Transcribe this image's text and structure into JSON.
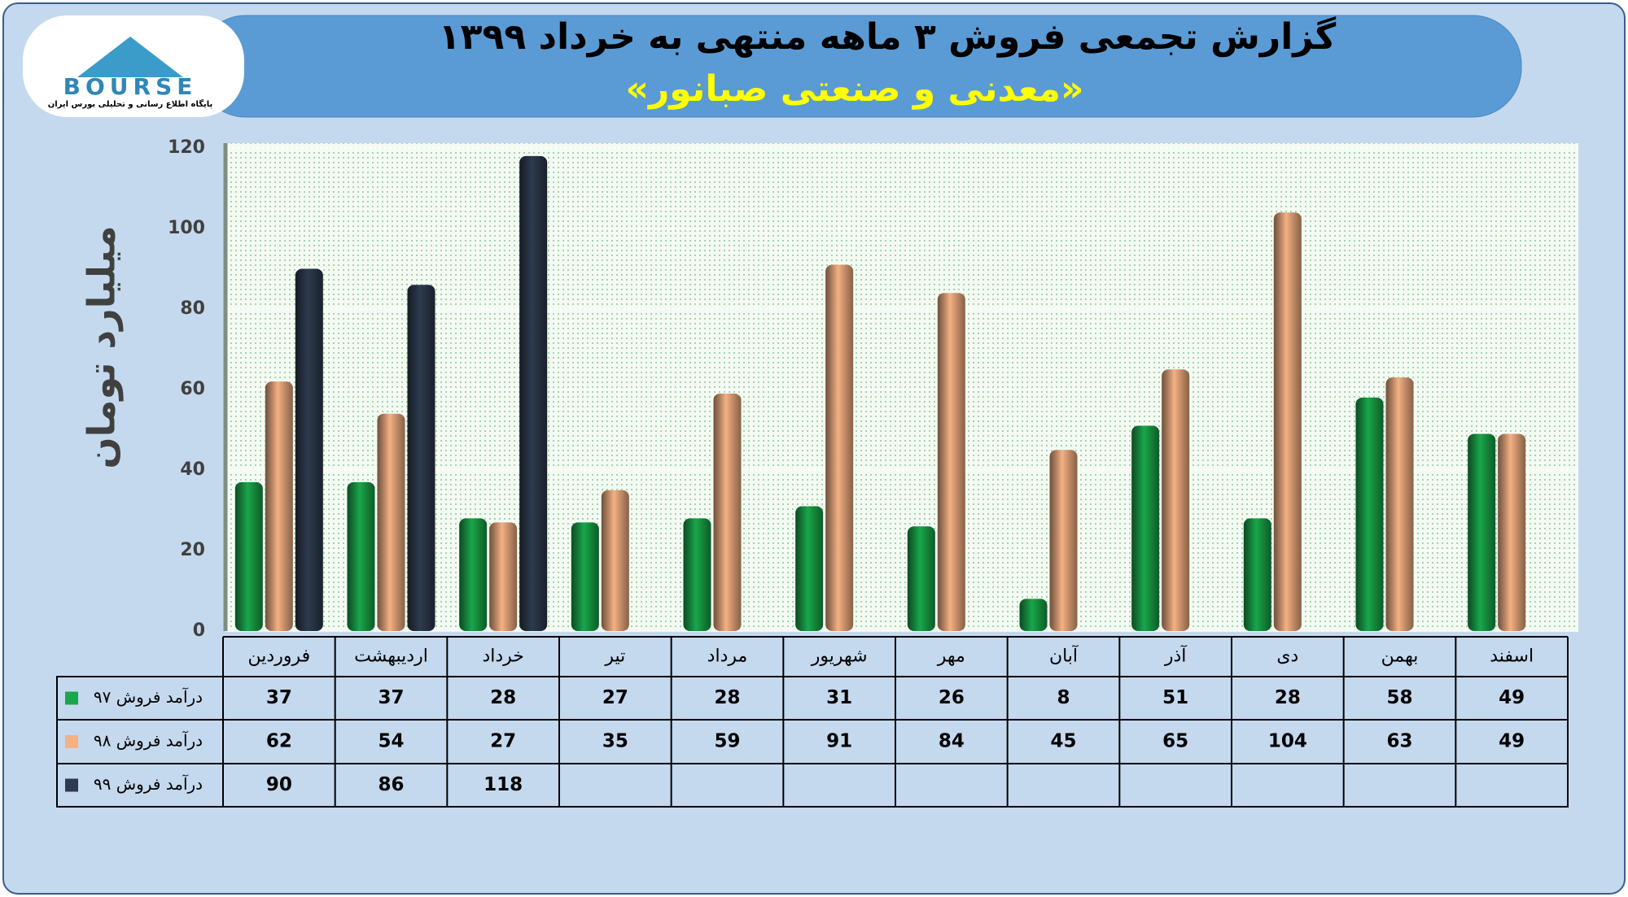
{
  "logo": {
    "name": "BOURSE",
    "caption": "پایگاه اطلاع رسانی و تحلیلی بورس ایران"
  },
  "chart_data": {
    "type": "bar",
    "title": "گزارش تجمعی فروش ۳ ماهه منتهی به خرداد ۱۳۹۹",
    "subtitle": "«معدنی و صنعتی صبانور»",
    "y_label": "میلیارد تومان",
    "categories": [
      "فروردین",
      "اردیبهشت",
      "خرداد",
      "تیر",
      "مرداد",
      "شهریور",
      "مهر",
      "آبان",
      "آذر",
      "دی",
      "بهمن",
      "اسفند"
    ],
    "series": [
      {
        "name": "درآمد فروش ۹۷",
        "color": "#1aa64a",
        "values": [
          37,
          37,
          28,
          27,
          28,
          31,
          26,
          8,
          51,
          28,
          58,
          49
        ]
      },
      {
        "name": "درآمد فروش ۹۸",
        "color": "#f4b183",
        "values": [
          62,
          54,
          27,
          35,
          59,
          91,
          84,
          45,
          65,
          104,
          63,
          49
        ]
      },
      {
        "name": "درآمد فروش ۹۹",
        "color": "#2e3b4e",
        "values": [
          90,
          86,
          118,
          null,
          null,
          null,
          null,
          null,
          null,
          null,
          null,
          null
        ]
      }
    ],
    "ylim": [
      0,
      120
    ],
    "yticks": [
      0,
      20,
      40,
      60,
      80,
      100,
      120
    ],
    "grid": true
  }
}
